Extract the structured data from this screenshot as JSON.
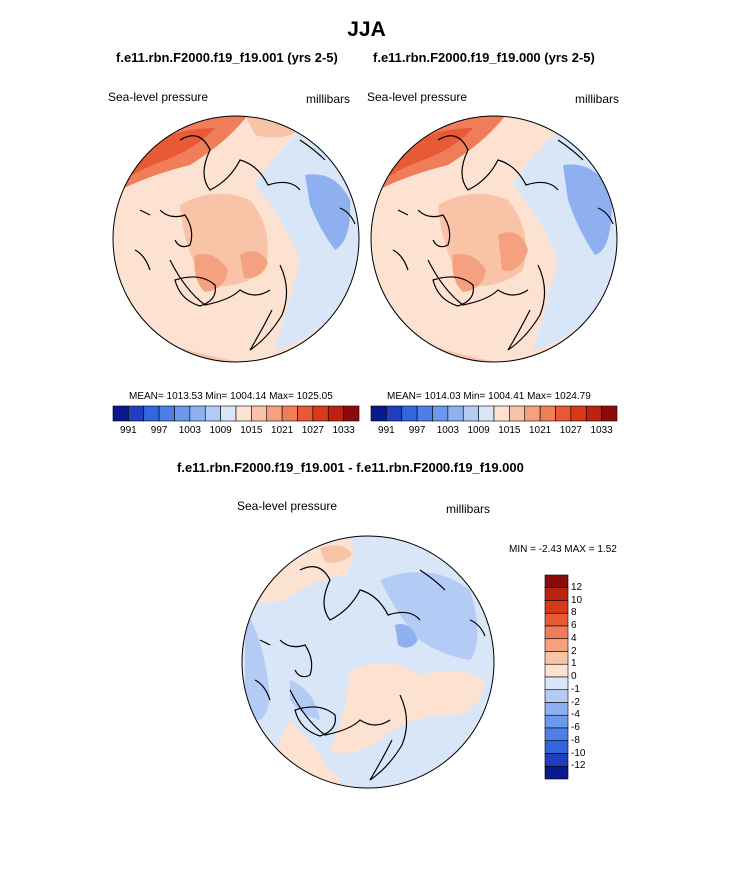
{
  "figure": {
    "title": "JJA",
    "panels": [
      {
        "title": "f.e11.rbn.F2000.f19_f19.001 (yrs 2-5)",
        "left_label": "Sea-level pressure",
        "right_label": "millibars",
        "stats": "MEAN= 1013.53  Min= 1004.14  Max= 1025.05"
      },
      {
        "title": "f.e11.rbn.F2000.f19_f19.000 (yrs 2-5)",
        "left_label": "Sea-level pressure",
        "right_label": "millibars",
        "stats": "MEAN= 1014.03  Min= 1004.41  Max= 1024.79"
      },
      {
        "title": "f.e11.rbn.F2000.f19_f19.001 - f.e11.rbn.F2000.f19_f19.000",
        "left_label": "Sea-level pressure",
        "right_label": "millibars",
        "stats": "MIN =  -2.43 MAX =   1.52"
      }
    ]
  },
  "colorbar_abs": {
    "tick_labels": [
      "991",
      "997",
      "1003",
      "1009",
      "1015",
      "1021",
      "1027",
      "1033"
    ],
    "colors": [
      "#0a1a8c",
      "#1f3fc0",
      "#3366dd",
      "#4d7fe6",
      "#6b97ec",
      "#8fb0f0",
      "#b4cbf5",
      "#d8e6f7",
      "#fde2d2",
      "#f9c3a8",
      "#f5a07f",
      "#f07d5a",
      "#e85a35",
      "#d9391a",
      "#bb2210",
      "#8a0c0a"
    ]
  },
  "colorbar_diff": {
    "tick_labels": [
      "12",
      "10",
      "8",
      "6",
      "4",
      "2",
      "1",
      "0",
      "-1",
      "-2",
      "-4",
      "-6",
      "-8",
      "-10",
      "-12"
    ],
    "colors": [
      "#8a0c0a",
      "#bb2210",
      "#d9391a",
      "#e85a35",
      "#f07d5a",
      "#f5a07f",
      "#f9c3a8",
      "#fde2d2",
      "#d8e6f7",
      "#b4cbf5",
      "#8fb0f0",
      "#6b97ec",
      "#4d7fe6",
      "#3366dd",
      "#1f3fc0",
      "#0a1a8c"
    ]
  }
}
